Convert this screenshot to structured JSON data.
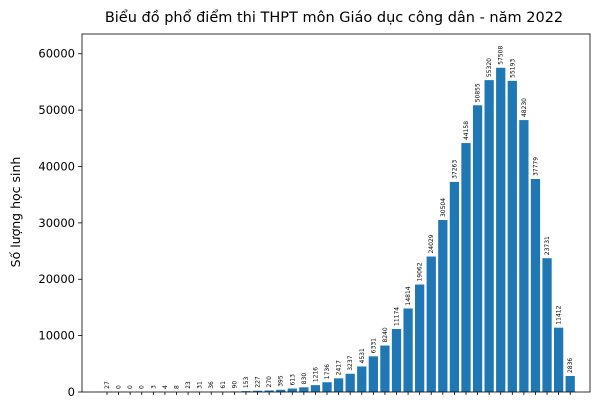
{
  "chart_data": {
    "type": "bar",
    "title": "Biểu đồ phổ điểm thi THPT môn Giáo dục công dân - năm 2022",
    "xlabel": "",
    "ylabel": "Số lượng học sinh",
    "ylim": [
      0,
      63500
    ],
    "yticks": [
      "0",
      "10000",
      "20000",
      "30000",
      "40000",
      "50000",
      "60000"
    ],
    "bar_color": "#1f77b4",
    "grid": false,
    "values": [
      27,
      0,
      0,
      0,
      3,
      4,
      8,
      23,
      31,
      36,
      61,
      90,
      153,
      227,
      270,
      395,
      613,
      830,
      1216,
      1736,
      2417,
      3237,
      4531,
      6331,
      8240,
      11174,
      14814,
      19062,
      24029,
      30504,
      37263,
      44158,
      50855,
      55320,
      57508,
      55193,
      48230,
      37779,
      23731,
      11412,
      2836
    ]
  }
}
